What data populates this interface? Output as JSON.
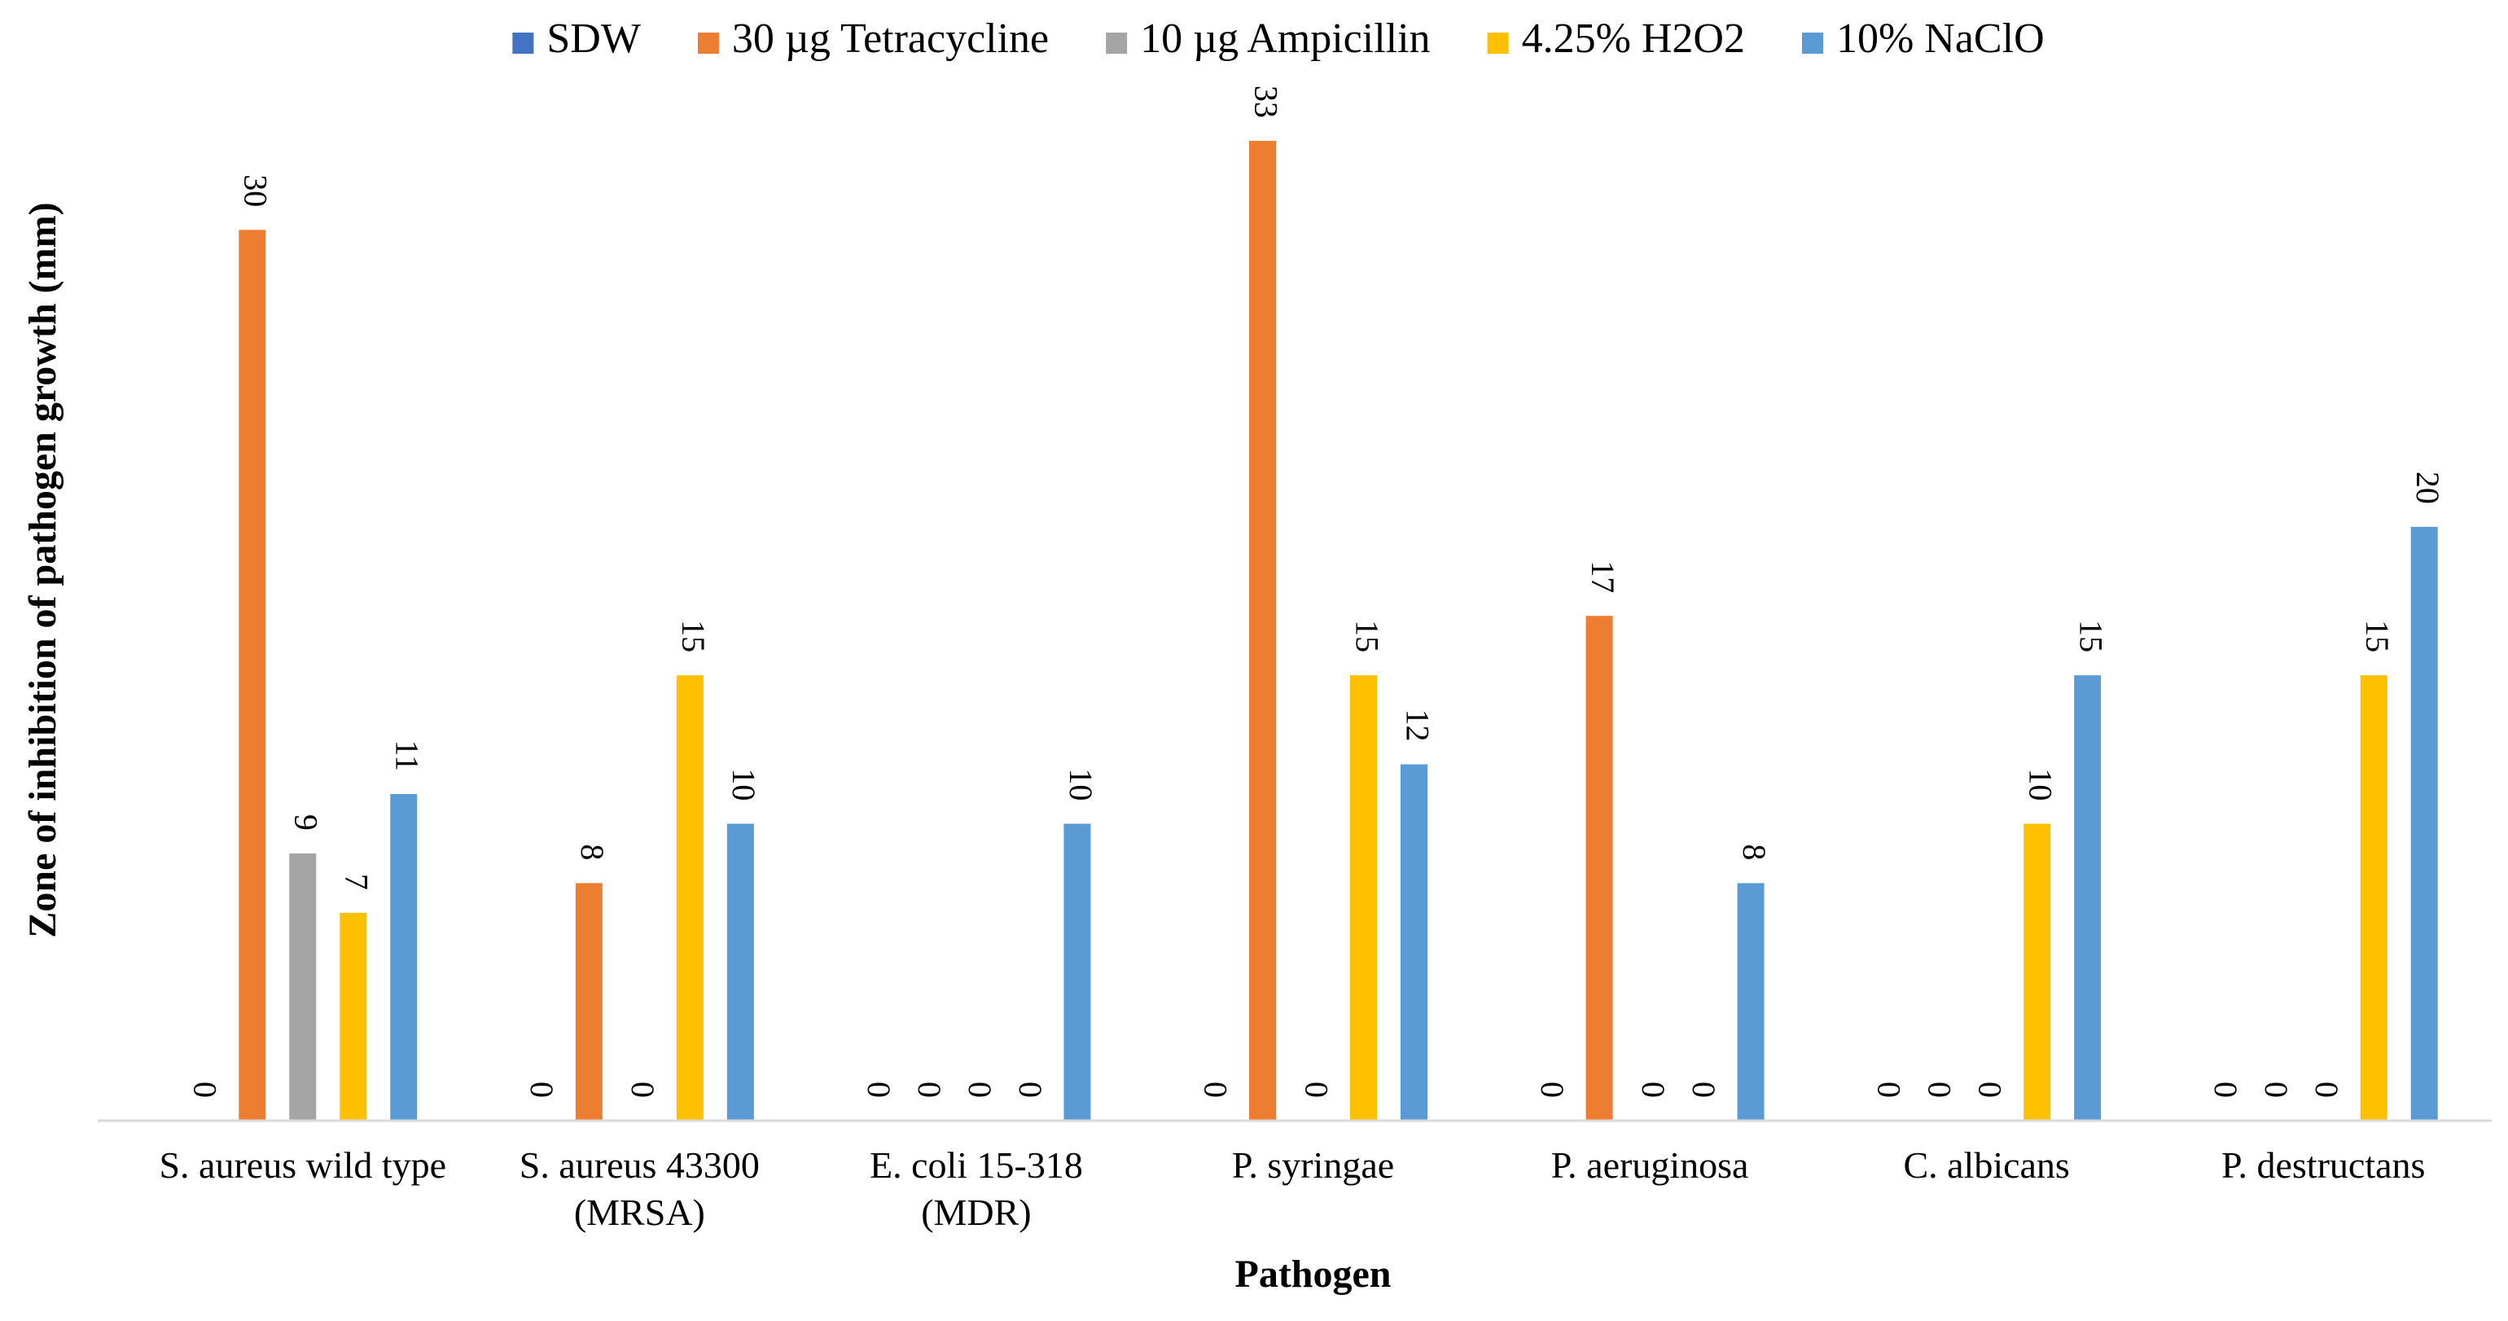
{
  "chart_data": {
    "type": "bar",
    "title": "",
    "xlabel": "Pathogen",
    "ylabel": "Zone of inhibition of pathogen growth (mm)",
    "ylim": [
      0,
      35
    ],
    "grid": false,
    "legend_position": "top",
    "categories": [
      [
        "S. aureus wild type"
      ],
      [
        "S. aureus 43300",
        "(MRSA)"
      ],
      [
        "E. coli 15-318",
        "(MDR)"
      ],
      [
        "P. syringae"
      ],
      [
        "P. aeruginosa"
      ],
      [
        "C. albicans"
      ],
      [
        "P. destructans"
      ]
    ],
    "series": [
      {
        "name": "SDW",
        "color": "#4472C4",
        "values": [
          0,
          0,
          0,
          0,
          0,
          0,
          0
        ]
      },
      {
        "name": "30 µg Tetracycline",
        "color": "#ED7D31",
        "values": [
          30,
          8,
          0,
          33,
          17,
          0,
          0
        ]
      },
      {
        "name": "10 µg Ampicillin",
        "color": "#A5A5A5",
        "values": [
          9,
          0,
          0,
          0,
          0,
          0,
          0
        ]
      },
      {
        "name": "4.25% H2O2",
        "color": "#FFC000",
        "values": [
          7,
          15,
          0,
          15,
          0,
          10,
          15
        ]
      },
      {
        "name": "10% NaClO",
        "color": "#5B9BD5",
        "values": [
          11,
          10,
          10,
          12,
          8,
          15,
          20
        ]
      }
    ]
  }
}
